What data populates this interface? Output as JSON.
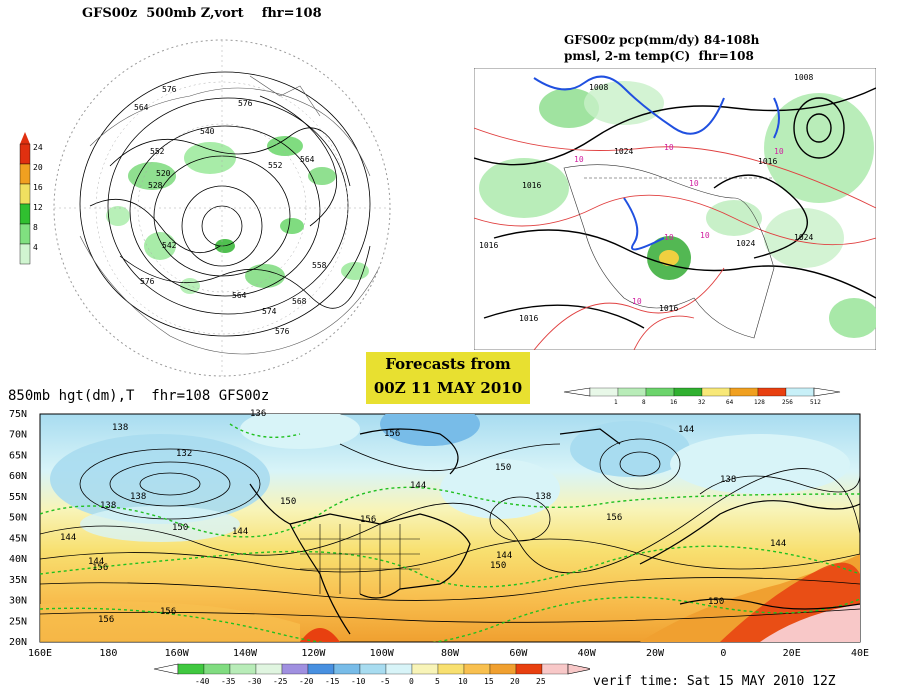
{
  "panel_vort": {
    "title": "GFS00z  500mb Z,vort    fhr=108",
    "contour_labels": [
      "576",
      "564",
      "552",
      "540",
      "528",
      "576",
      "552",
      "564",
      "558",
      "564",
      "574",
      "568",
      "576",
      "576",
      "542",
      "520"
    ],
    "legend_values": [
      "24",
      "20",
      "16",
      "12",
      "8",
      "4"
    ],
    "legend_colors": [
      "#e03010",
      "#f0a020",
      "#f0e060",
      "#30c030",
      "#80e080",
      "#d0f5d0"
    ]
  },
  "panel_pcp": {
    "title_line1": "GFS00z pcp(mm/dy) 84-108h",
    "title_line2": "pmsl, 2-m temp(C)  fhr=108",
    "isobar_labels": [
      "1008",
      "1016",
      "1024",
      "1016",
      "1024",
      "1016",
      "1016",
      "1016",
      "1024",
      "1008"
    ],
    "temp_labels": [
      "10",
      "10",
      "10",
      "10",
      "10",
      "10",
      "10"
    ]
  },
  "forecast_box": {
    "line1": "Forecasts from",
    "line2": "00Z 11 MAY 2010"
  },
  "pcp_colorbar": {
    "values": [
      "1",
      "8",
      "16",
      "32",
      "64",
      "128",
      "256",
      "512"
    ],
    "colors": [
      "#e8f8e8",
      "#b8ecb8",
      "#6cd46c",
      "#30b030",
      "#f8e878",
      "#f0a020",
      "#e84010",
      "#c8f0f8"
    ]
  },
  "panel_850": {
    "title": "850mb hgt(dm),T  fhr=108 GFS00z",
    "lat_labels": [
      "75N",
      "70N",
      "65N",
      "60N",
      "55N",
      "50N",
      "45N",
      "40N",
      "35N",
      "30N",
      "25N",
      "20N"
    ],
    "lon_labels": [
      "160E",
      "180",
      "160W",
      "140W",
      "120W",
      "100W",
      "80W",
      "60W",
      "40W",
      "20W",
      "0",
      "20E",
      "40E"
    ],
    "height_labels": [
      "138",
      "132",
      "138",
      "150",
      "144",
      "156",
      "156",
      "144",
      "150",
      "156",
      "144",
      "144",
      "150",
      "138",
      "144",
      "156",
      "144",
      "150",
      "138",
      "156",
      "150",
      "144",
      "138",
      "136",
      "156"
    ]
  },
  "temp_colorbar": {
    "values": [
      "-40",
      "-35",
      "-30",
      "-25",
      "-20",
      "-15",
      "-10",
      "-5",
      "0",
      "5",
      "10",
      "15",
      "20",
      "25"
    ],
    "colors": [
      "#40c840",
      "#80dc80",
      "#b8ecb8",
      "#e0f5e0",
      "#a090e0",
      "#4890e0",
      "#78bce8",
      "#a8dcf0",
      "#d8f4f8",
      "#f8f4b8",
      "#f8e070",
      "#f8c050",
      "#f0a030",
      "#e84010",
      "#f8c8c8"
    ]
  },
  "verif": {
    "text": "verif time: Sat 15 MAY 2010 12Z"
  }
}
